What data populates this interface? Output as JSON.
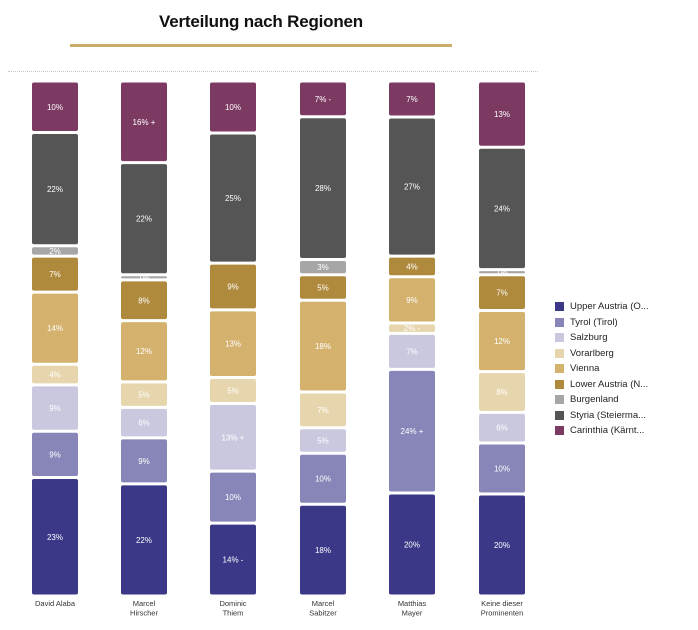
{
  "title": "Verteilung nach Regionen",
  "colors": {
    "Upper Austria (O...": "#3a3887",
    "Tyrol (Tirol)": "#8886b8",
    "Salzburg": "#c9c8df",
    "Vorarlberg": "#e7d6ad",
    "Vienna": "#d4b26e",
    "Lower Austria (N...": "#b08a3c",
    "Burgenland": "#a6a6a6",
    "Styria (Steierma...": "#555555",
    "Carinthia (Kärnt...": "#7c3a63"
  },
  "chart_data": {
    "type": "bar",
    "stacked": true,
    "normalized_percent": true,
    "categories": [
      [
        "David Alaba"
      ],
      [
        "Marcel",
        "Hirscher"
      ],
      [
        "Dominic",
        "Thiem"
      ],
      [
        "Marcel",
        "Sabitzer"
      ],
      [
        "Matthias",
        "Mayer"
      ],
      [
        "Keine dieser",
        "Prominenten"
      ]
    ],
    "series": [
      {
        "name": "Upper Austria (O...",
        "values": [
          23,
          22,
          14,
          18,
          20,
          20
        ],
        "labels": [
          "23%",
          "22%",
          "14% -",
          "18%",
          "20%",
          "20%"
        ]
      },
      {
        "name": "Tyrol (Tirol)",
        "values": [
          9,
          9,
          10,
          10,
          24,
          10
        ],
        "labels": [
          "9%",
          "9%",
          "10%",
          "10%",
          "24% +",
          "10%"
        ]
      },
      {
        "name": "Salzburg",
        "values": [
          9,
          6,
          13,
          5,
          7,
          6
        ],
        "labels": [
          "9%",
          "6%",
          "13% +",
          "5%",
          "7%",
          "6%"
        ]
      },
      {
        "name": "Vorarlberg",
        "values": [
          4,
          5,
          5,
          7,
          2,
          8
        ],
        "labels": [
          "4%",
          "5%",
          "5%",
          "7%",
          "2% -",
          "8%"
        ]
      },
      {
        "name": "Vienna",
        "values": [
          14,
          12,
          13,
          18,
          9,
          12
        ],
        "labels": [
          "14%",
          "12%",
          "13%",
          "18%",
          "9%",
          "12%"
        ]
      },
      {
        "name": "Lower Austria (N...",
        "values": [
          7,
          8,
          9,
          5,
          4,
          7
        ],
        "labels": [
          "7%",
          "8%",
          "9%",
          "5%",
          "4%",
          "7%"
        ]
      },
      {
        "name": "Burgenland",
        "values": [
          2,
          1,
          0,
          3,
          0,
          1
        ],
        "labels": [
          "2%",
          "1%",
          "",
          "3%",
          "",
          "1%"
        ]
      },
      {
        "name": "Styria (Steierma...",
        "values": [
          22,
          22,
          25,
          28,
          27,
          24
        ],
        "labels": [
          "22%",
          "22%",
          "25%",
          "28%",
          "27%",
          "24%"
        ]
      },
      {
        "name": "Carinthia (Kärnt...",
        "values": [
          10,
          16,
          10,
          7,
          7,
          13
        ],
        "labels": [
          "10%",
          "16% +",
          "10%",
          "7% -",
          "7%",
          "13%"
        ]
      }
    ],
    "ylim": [
      0,
      100
    ],
    "legend": "right"
  }
}
